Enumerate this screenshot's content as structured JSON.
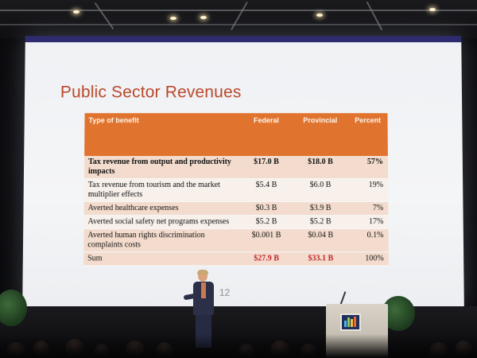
{
  "slide": {
    "title": "Public Sector Revenues",
    "page_number": "12"
  },
  "table": {
    "headers": {
      "type": "Type of benefit",
      "federal": "Federal",
      "provincial": "Provincial",
      "percent": "Percent"
    },
    "rows": [
      {
        "type": "Tax revenue from output and productivity impacts",
        "federal": "$17.0 B",
        "provincial": "$18.0 B",
        "percent": "57%"
      },
      {
        "type": "Tax revenue from tourism and the market multiplier effects",
        "federal": "$5.4 B",
        "provincial": "$6.0 B",
        "percent": "19%"
      },
      {
        "type": "Averted healthcare expenses",
        "federal": "$0.3 B",
        "provincial": "$3.9 B",
        "percent": "7%"
      },
      {
        "type": "Averted social safety net programs expenses",
        "federal": "$5.2 B",
        "provincial": "$5.2 B",
        "percent": "17%"
      },
      {
        "type": "Averted human rights discrimination complaints costs",
        "federal": "$0.001 B",
        "provincial": "$0.04 B",
        "percent": "0.1%"
      }
    ],
    "sum": {
      "type": "Sum",
      "federal": "$27.9 B",
      "provincial": "$33.1 B",
      "percent": "100%"
    }
  },
  "colors": {
    "title": "#b8472a",
    "header_fill": "#e0732e",
    "sum_highlight": "#c0262b",
    "screen_bar": "#2e2b6e"
  }
}
